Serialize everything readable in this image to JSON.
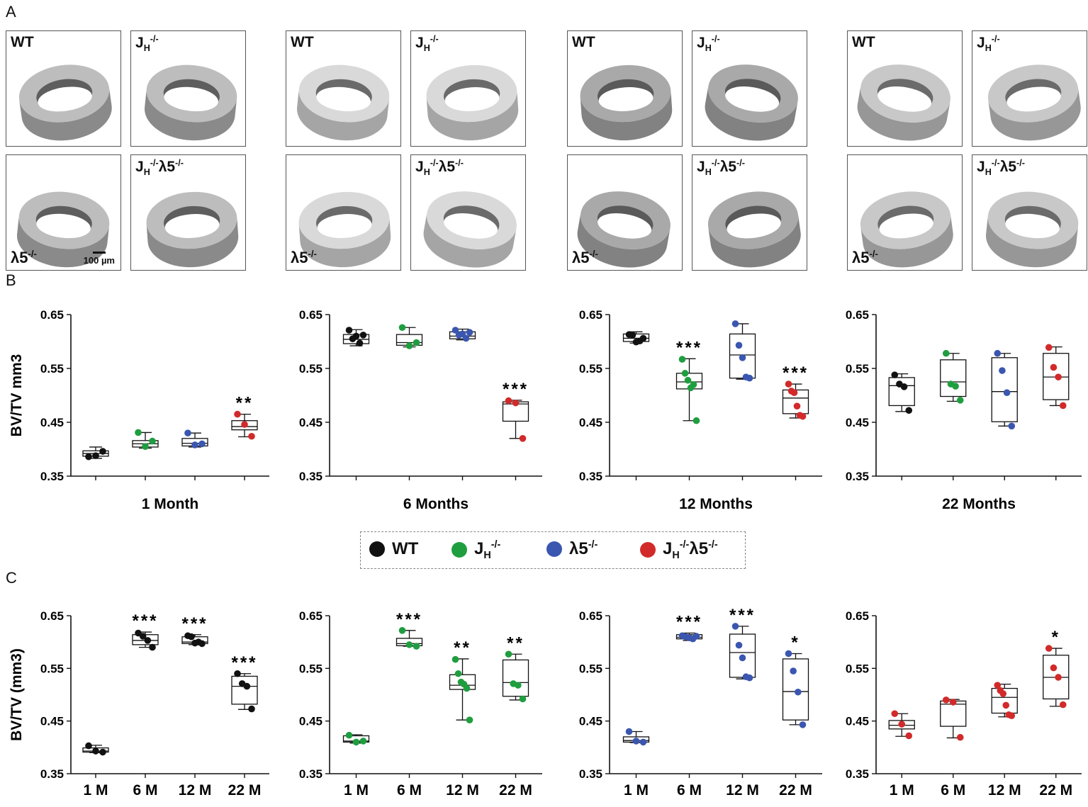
{
  "panels": {
    "a": "A",
    "b": "B",
    "c": "C"
  },
  "genotypes": {
    "wt": {
      "label": "WT",
      "color": "#111111"
    },
    "jh": {
      "label": "J",
      "sub": "H",
      "sup": "-/-",
      "color": "#1f9e3f"
    },
    "l5": {
      "label": "λ5",
      "sup": "-/-",
      "color": "#3a56b0"
    },
    "dko": {
      "label_a": "J",
      "sub_a": "H",
      "sup_a": "-/-",
      "label_b": "λ5",
      "sup_b": "-/-",
      "color": "#d22a2a"
    }
  },
  "legend": {
    "wt": "WT",
    "jh_base": "J",
    "jh_sub": "H",
    "jh_sup": "-/-",
    "l5_base": "λ5",
    "l5_sup": "-/-",
    "dko_base1": "J",
    "dko_sub": "H",
    "dko_sup1": "-/-",
    "dko_base2": "λ5",
    "dko_sup2": "-/-"
  },
  "scale_label": "100 µm",
  "chart_data": [
    {
      "type": "box",
      "panel": "B",
      "xlabel": "1 Month",
      "ylabel": "BV/TV  mm3",
      "ylim": [
        0.35,
        0.65
      ],
      "yticks": [
        "0.35",
        "0.45",
        "0.55",
        "0.65"
      ],
      "groups": [
        {
          "color": "#111111",
          "box": [
            0.383,
            0.387,
            0.392,
            0.397,
            0.404
          ],
          "points": [
            0.386,
            0.388,
            0.396
          ],
          "sig": ""
        },
        {
          "color": "#1f9e3f",
          "box": [
            0.402,
            0.404,
            0.41,
            0.416,
            0.431
          ],
          "points": [
            0.431,
            0.405,
            0.415
          ],
          "sig": ""
        },
        {
          "color": "#3a56b0",
          "box": [
            0.404,
            0.406,
            0.411,
            0.42,
            0.43
          ],
          "points": [
            0.43,
            0.408,
            0.41
          ],
          "sig": ""
        },
        {
          "color": "#d22a2a",
          "box": [
            0.423,
            0.436,
            0.442,
            0.453,
            0.465
          ],
          "points": [
            0.465,
            0.446,
            0.424
          ],
          "sig": "**"
        }
      ]
    },
    {
      "type": "box",
      "panel": "B",
      "xlabel": "6 Months",
      "ylabel": "",
      "ylim": [
        0.35,
        0.65
      ],
      "yticks": [
        "0.35",
        "0.45",
        "0.55",
        "0.65"
      ],
      "groups": [
        {
          "color": "#111111",
          "box": [
            0.592,
            0.596,
            0.604,
            0.613,
            0.622
          ],
          "points": [
            0.621,
            0.605,
            0.61,
            0.597,
            0.612
          ],
          "sig": ""
        },
        {
          "color": "#1f9e3f",
          "box": [
            0.59,
            0.593,
            0.598,
            0.613,
            0.626
          ],
          "points": [
            0.626,
            0.592,
            0.598
          ],
          "sig": ""
        },
        {
          "color": "#3a56b0",
          "box": [
            0.603,
            0.605,
            0.61,
            0.618,
            0.623
          ],
          "points": [
            0.621,
            0.612,
            0.614,
            0.606,
            0.617
          ],
          "sig": ""
        },
        {
          "color": "#d22a2a",
          "box": [
            0.42,
            0.452,
            0.484,
            0.488,
            0.491
          ],
          "points": [
            0.49,
            0.486,
            0.42
          ],
          "sig": "***"
        }
      ]
    },
    {
      "type": "box",
      "panel": "B",
      "xlabel": "12 Months",
      "ylabel": "",
      "ylim": [
        0.35,
        0.65
      ],
      "yticks": [
        "0.35",
        "0.45",
        "0.55",
        "0.65"
      ],
      "groups": [
        {
          "color": "#111111",
          "box": [
            0.597,
            0.6,
            0.606,
            0.614,
            0.618
          ],
          "points": [
            0.613,
            0.612,
            0.599,
            0.601,
            0.606
          ],
          "sig": ""
        },
        {
          "color": "#1f9e3f",
          "box": [
            0.453,
            0.512,
            0.525,
            0.541,
            0.568
          ],
          "points": [
            0.567,
            0.541,
            0.528,
            0.514,
            0.52,
            0.453
          ],
          "sig": "***"
        },
        {
          "color": "#3a56b0",
          "box": [
            0.53,
            0.532,
            0.575,
            0.614,
            0.633
          ],
          "points": [
            0.633,
            0.593,
            0.57,
            0.534,
            0.532
          ],
          "sig": ""
        },
        {
          "color": "#d22a2a",
          "box": [
            0.458,
            0.466,
            0.495,
            0.51,
            0.521
          ],
          "points": [
            0.521,
            0.508,
            0.505,
            0.48,
            0.463,
            0.461
          ],
          "sig": "***"
        }
      ]
    },
    {
      "type": "box",
      "panel": "B",
      "xlabel": "22 Months",
      "ylabel": "",
      "ylim": [
        0.35,
        0.65
      ],
      "yticks": [
        "0.35",
        "0.45",
        "0.55",
        "0.65"
      ],
      "groups": [
        {
          "color": "#111111",
          "box": [
            0.47,
            0.481,
            0.518,
            0.533,
            0.54
          ],
          "points": [
            0.538,
            0.521,
            0.516,
            0.472
          ],
          "sig": ""
        },
        {
          "color": "#1f9e3f",
          "box": [
            0.489,
            0.498,
            0.525,
            0.566,
            0.578
          ],
          "points": [
            0.578,
            0.521,
            0.517,
            0.491
          ],
          "sig": ""
        },
        {
          "color": "#3a56b0",
          "box": [
            0.443,
            0.451,
            0.507,
            0.57,
            0.578
          ],
          "points": [
            0.578,
            0.546,
            0.505,
            0.443
          ],
          "sig": ""
        },
        {
          "color": "#d22a2a",
          "box": [
            0.481,
            0.492,
            0.534,
            0.578,
            0.59
          ],
          "points": [
            0.589,
            0.552,
            0.534,
            0.481
          ],
          "sig": ""
        }
      ]
    },
    {
      "type": "box",
      "panel": "C",
      "xlabel": "",
      "ylabel": "BV/TV  (mm3)",
      "categories": [
        "1 M",
        "6 M",
        "12 M",
        "22 M"
      ],
      "ylim": [
        0.35,
        0.65
      ],
      "yticks": [
        "0.35",
        "0.45",
        "0.55",
        "0.65"
      ],
      "groups": [
        {
          "color": "#111111",
          "box": [
            0.39,
            0.391,
            0.393,
            0.399,
            0.404
          ],
          "points": [
            0.403,
            0.393,
            0.391
          ],
          "sig": ""
        },
        {
          "color": "#111111",
          "box": [
            0.59,
            0.595,
            0.603,
            0.614,
            0.619
          ],
          "points": [
            0.617,
            0.611,
            0.603,
            0.59
          ],
          "sig": "***"
        },
        {
          "color": "#111111",
          "box": [
            0.595,
            0.597,
            0.6,
            0.61,
            0.614
          ],
          "points": [
            0.612,
            0.61,
            0.598,
            0.6,
            0.597
          ],
          "sig": "***"
        },
        {
          "color": "#111111",
          "box": [
            0.472,
            0.482,
            0.516,
            0.535,
            0.54
          ],
          "points": [
            0.54,
            0.521,
            0.516,
            0.473
          ],
          "sig": "***"
        }
      ]
    },
    {
      "type": "box",
      "panel": "C",
      "xlabel": "",
      "ylabel": "",
      "categories": [
        "1 M",
        "6 M",
        "12 M",
        "22 M"
      ],
      "ylim": [
        0.35,
        0.65
      ],
      "yticks": [
        "0.35",
        "0.45",
        "0.55",
        "0.65"
      ],
      "groups": [
        {
          "color": "#1f9e3f",
          "box": [
            0.408,
            0.41,
            0.412,
            0.422,
            0.424
          ],
          "points": [
            0.423,
            0.41,
            0.412
          ],
          "sig": ""
        },
        {
          "color": "#1f9e3f",
          "box": [
            0.592,
            0.593,
            0.597,
            0.607,
            0.622
          ],
          "points": [
            0.622,
            0.595,
            0.592
          ],
          "sig": "***"
        },
        {
          "color": "#1f9e3f",
          "box": [
            0.452,
            0.51,
            0.518,
            0.538,
            0.568
          ],
          "points": [
            0.567,
            0.54,
            0.524,
            0.52,
            0.512,
            0.452
          ],
          "sig": "**"
        },
        {
          "color": "#1f9e3f",
          "box": [
            0.49,
            0.497,
            0.523,
            0.566,
            0.577
          ],
          "points": [
            0.577,
            0.521,
            0.518,
            0.492
          ],
          "sig": "**"
        }
      ]
    },
    {
      "type": "box",
      "panel": "C",
      "xlabel": "",
      "ylabel": "",
      "categories": [
        "1 M",
        "6 M",
        "12 M",
        "22 M"
      ],
      "ylim": [
        0.35,
        0.65
      ],
      "yticks": [
        "0.35",
        "0.45",
        "0.55",
        "0.65"
      ],
      "groups": [
        {
          "color": "#3a56b0",
          "box": [
            0.409,
            0.41,
            0.413,
            0.42,
            0.43
          ],
          "points": [
            0.43,
            0.412,
            0.41
          ],
          "sig": ""
        },
        {
          "color": "#3a56b0",
          "box": [
            0.603,
            0.606,
            0.609,
            0.614,
            0.617
          ],
          "points": [
            0.612,
            0.61,
            0.608,
            0.606,
            0.611
          ],
          "sig": "***"
        },
        {
          "color": "#3a56b0",
          "box": [
            0.53,
            0.533,
            0.58,
            0.615,
            0.63
          ],
          "points": [
            0.63,
            0.594,
            0.57,
            0.534,
            0.532
          ],
          "sig": "***"
        },
        {
          "color": "#3a56b0",
          "box": [
            0.443,
            0.452,
            0.506,
            0.568,
            0.578
          ],
          "points": [
            0.578,
            0.545,
            0.505,
            0.443
          ],
          "sig": "*"
        }
      ]
    },
    {
      "type": "box",
      "panel": "C",
      "xlabel": "",
      "ylabel": "",
      "categories": [
        "1 M",
        "6 M",
        "12 M",
        "22 M"
      ],
      "ylim": [
        0.35,
        0.65
      ],
      "yticks": [
        "0.35",
        "0.45",
        "0.55",
        "0.65"
      ],
      "groups": [
        {
          "color": "#d22a2a",
          "box": [
            0.421,
            0.435,
            0.442,
            0.451,
            0.464
          ],
          "points": [
            0.464,
            0.444,
            0.422
          ],
          "sig": ""
        },
        {
          "color": "#d22a2a",
          "box": [
            0.418,
            0.44,
            0.482,
            0.488,
            0.491
          ],
          "points": [
            0.49,
            0.486,
            0.419
          ],
          "sig": ""
        },
        {
          "color": "#d22a2a",
          "box": [
            0.458,
            0.465,
            0.495,
            0.512,
            0.52
          ],
          "points": [
            0.518,
            0.508,
            0.502,
            0.48,
            0.462,
            0.46
          ],
          "sig": ""
        },
        {
          "color": "#d22a2a",
          "box": [
            0.478,
            0.492,
            0.533,
            0.575,
            0.588
          ],
          "points": [
            0.588,
            0.551,
            0.533,
            0.481
          ],
          "sig": "*"
        }
      ]
    }
  ]
}
